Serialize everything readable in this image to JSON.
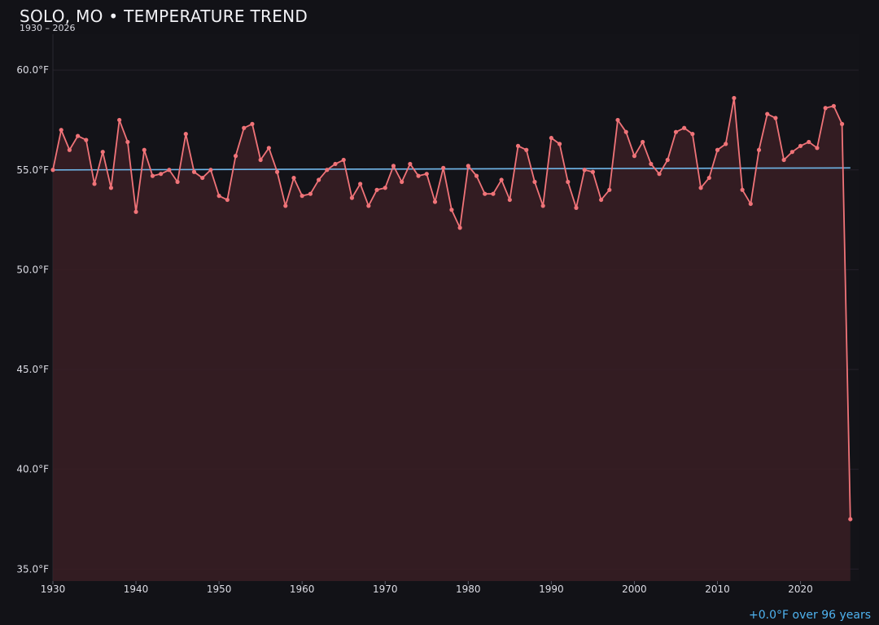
{
  "chart_data": {
    "type": "line",
    "title": "SOLO, MO • TEMPERATURE TREND",
    "subtitle": "1930 – 2026",
    "xlabel": "",
    "ylabel": "",
    "xlim": [
      1930,
      2027
    ],
    "ylim": [
      34.4,
      61.8
    ],
    "y_ticks": [
      35,
      40,
      45,
      50,
      55,
      60
    ],
    "y_tick_labels": [
      "35.0°F",
      "40.0°F",
      "45.0°F",
      "50.0°F",
      "55.0°F",
      "60.0°F"
    ],
    "x_ticks": [
      1930,
      1940,
      1950,
      1960,
      1970,
      1980,
      1990,
      2000,
      2010,
      2020
    ],
    "x_tick_labels": [
      "1930",
      "1940",
      "1950",
      "1960",
      "1970",
      "1980",
      "1990",
      "2000",
      "2010",
      "2020"
    ],
    "grid": true,
    "series": [
      {
        "x": [
          1930,
          1931,
          1932,
          1933,
          1934,
          1935,
          1936,
          1937,
          1938,
          1939,
          1940,
          1941,
          1942,
          1943,
          1944,
          1945,
          1946,
          1947,
          1948,
          1949,
          1950,
          1951,
          1952,
          1953,
          1954,
          1955,
          1956,
          1957,
          1958,
          1959,
          1960,
          1961,
          1962,
          1963,
          1964,
          1965,
          1966,
          1967,
          1968,
          1969,
          1970,
          1971,
          1972,
          1973,
          1974,
          1975,
          1976,
          1977,
          1978,
          1979,
          1980,
          1981,
          1982,
          1983,
          1984,
          1985,
          1986,
          1987,
          1988,
          1989,
          1990,
          1991,
          1992,
          1993,
          1994,
          1995,
          1996,
          1997,
          1998,
          1999,
          2000,
          2001,
          2002,
          2003,
          2004,
          2005,
          2006,
          2007,
          2008,
          2009,
          2010,
          2011,
          2012,
          2013,
          2014,
          2015,
          2016,
          2017,
          2018,
          2019,
          2020,
          2021,
          2022,
          2023,
          2024,
          2025,
          2026
        ],
        "values": [
          55.0,
          57.0,
          56.0,
          56.7,
          56.5,
          54.3,
          55.9,
          54.1,
          57.5,
          56.4,
          52.9,
          56.0,
          54.7,
          54.8,
          55.0,
          54.4,
          56.8,
          54.9,
          54.6,
          55.0,
          53.7,
          53.5,
          55.7,
          57.1,
          57.3,
          55.5,
          56.1,
          54.9,
          53.2,
          54.6,
          53.7,
          53.8,
          54.5,
          55.0,
          55.3,
          55.5,
          53.6,
          54.3,
          53.2,
          54.0,
          54.1,
          55.2,
          54.4,
          55.3,
          54.7,
          54.8,
          53.4,
          55.1,
          53.0,
          52.1,
          55.2,
          54.7,
          53.8,
          53.8,
          54.5,
          53.5,
          56.2,
          56.0,
          54.4,
          53.2,
          56.6,
          56.3,
          54.4,
          53.1,
          55.0,
          54.9,
          53.5,
          54.0,
          57.5,
          56.9,
          55.7,
          56.4,
          55.3,
          54.8,
          55.5,
          56.9,
          57.1,
          56.8,
          54.1,
          54.6,
          56.0,
          56.3,
          58.6,
          54.0,
          53.3,
          56.0,
          57.8,
          57.6,
          55.5,
          55.9,
          56.2,
          56.4,
          56.1,
          58.1,
          58.2,
          57.3,
          37.5
        ],
        "color": "#f07378"
      }
    ],
    "trend": {
      "start": 55.0,
      "end": 55.1,
      "color": "#6fb6e8"
    },
    "trend_note": "+0.0°F over 96 years",
    "colors": {
      "background": "#121217",
      "plot_bg": "#131318",
      "area_fill": "#3a1e25",
      "grid": "#24202a"
    }
  }
}
